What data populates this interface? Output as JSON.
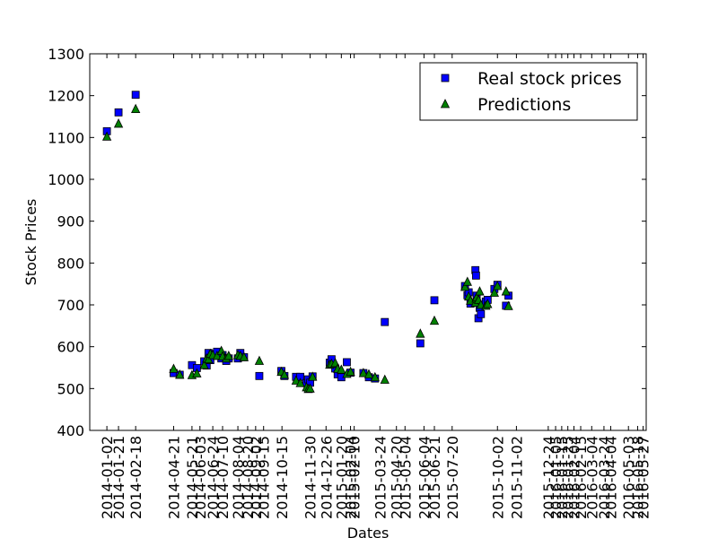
{
  "chart_data": {
    "type": "scatter",
    "xlabel": "Dates",
    "ylabel": "Stock Prices",
    "ylim": [
      400,
      1300
    ],
    "yticks": [
      400,
      500,
      600,
      700,
      800,
      900,
      1000,
      1100,
      1200,
      1300
    ],
    "xlim": [
      "2013-12-05",
      "2016-06-01"
    ],
    "grid": false,
    "legend_position": "top-right",
    "xtick_labels": [
      "2014-01-02",
      "2014-01-21",
      "2014-02-18",
      "2014-04-21",
      "2014-05-21",
      "2014-06-03",
      "2014-06-24",
      "2014-07-10",
      "2014-08-04",
      "2014-08-20",
      "2014-09-02",
      "2014-09-15",
      "2014-10-15",
      "2014-11-30",
      "2014-12-26",
      "2015-01-20",
      "2015-02-04",
      "2015-02-10",
      "2015-03-24",
      "2015-04-20",
      "2015-05-04",
      "2015-06-04",
      "2015-06-21",
      "2015-07-20",
      "2015-10-02",
      "2015-11-02",
      "2015-12-24",
      "2016-01-05",
      "2016-01-15",
      "2016-01-25",
      "2016-02-04",
      "2016-02-15",
      "2016-03-04",
      "2016-03-24",
      "2016-04-04",
      "2016-05-03",
      "2016-05-18",
      "2016-05-27"
    ],
    "series": [
      {
        "name": "Real stock prices",
        "marker": "square",
        "color": "#0000ff",
        "points": [
          {
            "x": "2014-01-02",
            "y": 1115
          },
          {
            "x": "2014-01-21",
            "y": 1160
          },
          {
            "x": "2014-02-18",
            "y": 1202
          },
          {
            "x": "2014-04-21",
            "y": 537
          },
          {
            "x": "2014-05-01",
            "y": 533
          },
          {
            "x": "2014-05-21",
            "y": 556
          },
          {
            "x": "2014-05-29",
            "y": 549
          },
          {
            "x": "2014-06-10",
            "y": 565
          },
          {
            "x": "2014-06-14",
            "y": 555
          },
          {
            "x": "2014-06-17",
            "y": 585
          },
          {
            "x": "2014-06-20",
            "y": 568
          },
          {
            "x": "2014-06-24",
            "y": 582
          },
          {
            "x": "2014-07-01",
            "y": 588
          },
          {
            "x": "2014-07-08",
            "y": 572
          },
          {
            "x": "2014-07-10",
            "y": 580
          },
          {
            "x": "2014-07-16",
            "y": 566
          },
          {
            "x": "2014-07-20",
            "y": 572
          },
          {
            "x": "2014-08-04",
            "y": 572
          },
          {
            "x": "2014-08-08",
            "y": 585
          },
          {
            "x": "2014-08-14",
            "y": 575
          },
          {
            "x": "2014-09-08",
            "y": 530
          },
          {
            "x": "2014-10-14",
            "y": 542
          },
          {
            "x": "2014-10-19",
            "y": 530
          },
          {
            "x": "2014-11-07",
            "y": 528
          },
          {
            "x": "2014-11-14",
            "y": 528
          },
          {
            "x": "2014-11-24",
            "y": 513
          },
          {
            "x": "2014-11-27",
            "y": 522
          },
          {
            "x": "2014-11-30",
            "y": 514
          },
          {
            "x": "2014-12-04",
            "y": 529
          },
          {
            "x": "2015-01-01",
            "y": 562
          },
          {
            "x": "2015-01-04",
            "y": 570
          },
          {
            "x": "2015-01-10",
            "y": 548
          },
          {
            "x": "2015-01-14",
            "y": 534
          },
          {
            "x": "2015-01-20",
            "y": 527
          },
          {
            "x": "2015-01-29",
            "y": 563
          },
          {
            "x": "2015-02-04",
            "y": 538
          },
          {
            "x": "2015-02-25",
            "y": 537
          },
          {
            "x": "2015-03-06",
            "y": 527
          },
          {
            "x": "2015-03-16",
            "y": 524
          },
          {
            "x": "2015-04-01",
            "y": 659
          },
          {
            "x": "2015-05-29",
            "y": 608
          },
          {
            "x": "2015-06-21",
            "y": 711
          },
          {
            "x": "2015-08-10",
            "y": 745
          },
          {
            "x": "2015-08-14",
            "y": 723
          },
          {
            "x": "2015-08-16",
            "y": 730
          },
          {
            "x": "2015-08-19",
            "y": 703
          },
          {
            "x": "2015-08-27",
            "y": 783
          },
          {
            "x": "2015-08-28",
            "y": 770
          },
          {
            "x": "2015-08-29",
            "y": 722
          },
          {
            "x": "2015-09-01",
            "y": 668
          },
          {
            "x": "2015-09-03",
            "y": 693
          },
          {
            "x": "2015-09-05",
            "y": 678
          },
          {
            "x": "2015-09-13",
            "y": 708
          },
          {
            "x": "2015-09-16",
            "y": 712
          },
          {
            "x": "2015-09-27",
            "y": 738
          },
          {
            "x": "2015-10-02",
            "y": 748
          },
          {
            "x": "2015-10-16",
            "y": 698
          },
          {
            "x": "2015-10-20",
            "y": 722
          }
        ]
      },
      {
        "name": "Predictions",
        "marker": "triangle",
        "color": "#008000",
        "points": [
          {
            "x": "2014-01-02",
            "y": 1102
          },
          {
            "x": "2014-01-21",
            "y": 1133
          },
          {
            "x": "2014-02-18",
            "y": 1168
          },
          {
            "x": "2014-04-21",
            "y": 547
          },
          {
            "x": "2014-05-01",
            "y": 533
          },
          {
            "x": "2014-05-21",
            "y": 532
          },
          {
            "x": "2014-05-29",
            "y": 536
          },
          {
            "x": "2014-06-10",
            "y": 556
          },
          {
            "x": "2014-06-14",
            "y": 572
          },
          {
            "x": "2014-06-17",
            "y": 570
          },
          {
            "x": "2014-06-20",
            "y": 583
          },
          {
            "x": "2014-06-24",
            "y": 580
          },
          {
            "x": "2014-07-01",
            "y": 578
          },
          {
            "x": "2014-07-08",
            "y": 590
          },
          {
            "x": "2014-07-10",
            "y": 577
          },
          {
            "x": "2014-07-16",
            "y": 572
          },
          {
            "x": "2014-07-20",
            "y": 578
          },
          {
            "x": "2014-08-04",
            "y": 580
          },
          {
            "x": "2014-08-08",
            "y": 578
          },
          {
            "x": "2014-08-14",
            "y": 575
          },
          {
            "x": "2014-09-08",
            "y": 566
          },
          {
            "x": "2014-10-14",
            "y": 540
          },
          {
            "x": "2014-10-19",
            "y": 533
          },
          {
            "x": "2014-11-07",
            "y": 519
          },
          {
            "x": "2014-11-14",
            "y": 513
          },
          {
            "x": "2014-11-24",
            "y": 503
          },
          {
            "x": "2014-11-27",
            "y": 499
          },
          {
            "x": "2014-11-30",
            "y": 500
          },
          {
            "x": "2014-12-04",
            "y": 528
          },
          {
            "x": "2015-01-01",
            "y": 557
          },
          {
            "x": "2015-01-04",
            "y": 559
          },
          {
            "x": "2015-01-10",
            "y": 561
          },
          {
            "x": "2015-01-14",
            "y": 547
          },
          {
            "x": "2015-01-20",
            "y": 545
          },
          {
            "x": "2015-01-29",
            "y": 535
          },
          {
            "x": "2015-02-04",
            "y": 540
          },
          {
            "x": "2015-02-25",
            "y": 537
          },
          {
            "x": "2015-03-06",
            "y": 534
          },
          {
            "x": "2015-03-16",
            "y": 527
          },
          {
            "x": "2015-04-01",
            "y": 521
          },
          {
            "x": "2015-05-29",
            "y": 631
          },
          {
            "x": "2015-06-21",
            "y": 662
          },
          {
            "x": "2015-08-10",
            "y": 743
          },
          {
            "x": "2015-08-14",
            "y": 755
          },
          {
            "x": "2015-08-16",
            "y": 720
          },
          {
            "x": "2015-08-19",
            "y": 710
          },
          {
            "x": "2015-08-27",
            "y": 705
          },
          {
            "x": "2015-08-28",
            "y": 715
          },
          {
            "x": "2015-08-29",
            "y": 718
          },
          {
            "x": "2015-09-01",
            "y": 712
          },
          {
            "x": "2015-09-03",
            "y": 732
          },
          {
            "x": "2015-09-05",
            "y": 700
          },
          {
            "x": "2015-09-13",
            "y": 698
          },
          {
            "x": "2015-09-16",
            "y": 702
          },
          {
            "x": "2015-09-27",
            "y": 729
          },
          {
            "x": "2015-10-02",
            "y": 745
          },
          {
            "x": "2015-10-16",
            "y": 732
          },
          {
            "x": "2015-10-20",
            "y": 697
          }
        ]
      }
    ]
  }
}
